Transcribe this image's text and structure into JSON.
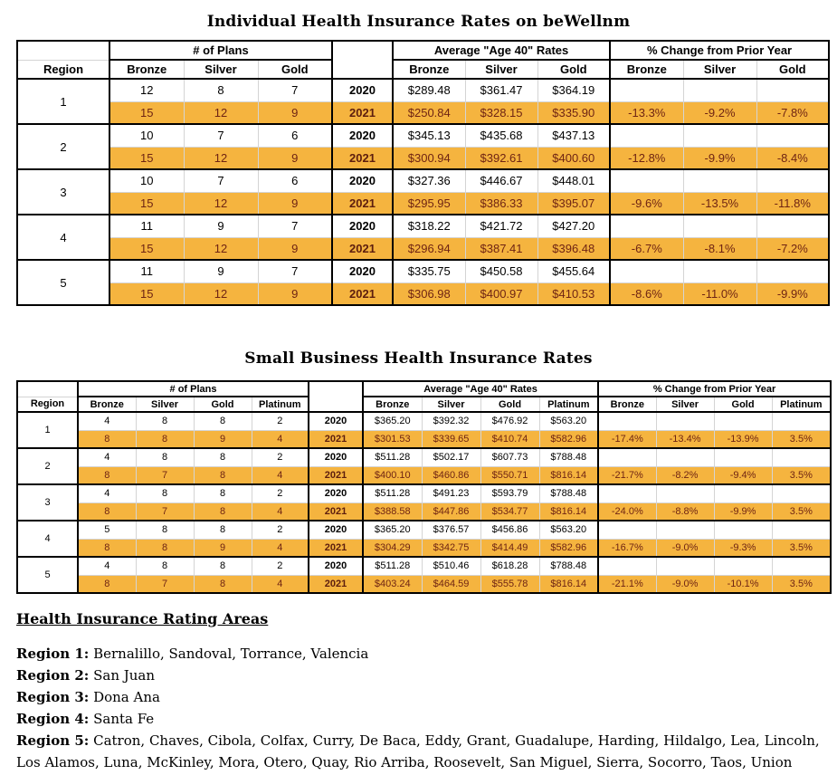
{
  "colors": {
    "highlight_row_bg": "#f5b43f",
    "highlight_row_text": "#6f2413",
    "grid_line": "#d4d4d4",
    "table_border": "#000000"
  },
  "individual_table": {
    "title": "Individual Health Insurance Rates on beWellnm",
    "group_headers": [
      "# of Plans",
      "Average \"Age 40\" Rates",
      "% Change from Prior Year"
    ],
    "region_label": "Region",
    "metals": [
      "Bronze",
      "Silver",
      "Gold"
    ],
    "regions": [
      {
        "region": "1",
        "rows": [
          {
            "year": "2020",
            "plans": [
              "12",
              "8",
              "7"
            ],
            "rates": [
              "$289.48",
              "$361.47",
              "$364.19"
            ],
            "changes": [
              "",
              "",
              ""
            ],
            "highlight": false
          },
          {
            "year": "2021",
            "plans": [
              "15",
              "12",
              "9"
            ],
            "rates": [
              "$250.84",
              "$328.15",
              "$335.90"
            ],
            "changes": [
              "-13.3%",
              "-9.2%",
              "-7.8%"
            ],
            "highlight": true
          }
        ]
      },
      {
        "region": "2",
        "rows": [
          {
            "year": "2020",
            "plans": [
              "10",
              "7",
              "6"
            ],
            "rates": [
              "$345.13",
              "$435.68",
              "$437.13"
            ],
            "changes": [
              "",
              "",
              ""
            ],
            "highlight": false
          },
          {
            "year": "2021",
            "plans": [
              "15",
              "12",
              "9"
            ],
            "rates": [
              "$300.94",
              "$392.61",
              "$400.60"
            ],
            "changes": [
              "-12.8%",
              "-9.9%",
              "-8.4%"
            ],
            "highlight": true
          }
        ]
      },
      {
        "region": "3",
        "rows": [
          {
            "year": "2020",
            "plans": [
              "10",
              "7",
              "6"
            ],
            "rates": [
              "$327.36",
              "$446.67",
              "$448.01"
            ],
            "changes": [
              "",
              "",
              ""
            ],
            "highlight": false
          },
          {
            "year": "2021",
            "plans": [
              "15",
              "12",
              "9"
            ],
            "rates": [
              "$295.95",
              "$386.33",
              "$395.07"
            ],
            "changes": [
              "-9.6%",
              "-13.5%",
              "-11.8%"
            ],
            "highlight": true
          }
        ]
      },
      {
        "region": "4",
        "rows": [
          {
            "year": "2020",
            "plans": [
              "11",
              "9",
              "7"
            ],
            "rates": [
              "$318.22",
              "$421.72",
              "$427.20"
            ],
            "changes": [
              "",
              "",
              ""
            ],
            "highlight": false
          },
          {
            "year": "2021",
            "plans": [
              "15",
              "12",
              "9"
            ],
            "rates": [
              "$296.94",
              "$387.41",
              "$396.48"
            ],
            "changes": [
              "-6.7%",
              "-8.1%",
              "-7.2%"
            ],
            "highlight": true
          }
        ]
      },
      {
        "region": "5",
        "rows": [
          {
            "year": "2020",
            "plans": [
              "11",
              "9",
              "7"
            ],
            "rates": [
              "$335.75",
              "$450.58",
              "$455.64"
            ],
            "changes": [
              "",
              "",
              ""
            ],
            "highlight": false
          },
          {
            "year": "2021",
            "plans": [
              "15",
              "12",
              "9"
            ],
            "rates": [
              "$306.98",
              "$400.97",
              "$410.53"
            ],
            "changes": [
              "-8.6%",
              "-11.0%",
              "-9.9%"
            ],
            "highlight": true
          }
        ]
      }
    ]
  },
  "small_business_table": {
    "title": "Small Business Health Insurance Rates",
    "group_headers": [
      "# of Plans",
      "Average \"Age 40\" Rates",
      "% Change from Prior Year"
    ],
    "region_label": "Region",
    "metals": [
      "Bronze",
      "Silver",
      "Gold",
      "Platinum"
    ],
    "regions": [
      {
        "region": "1",
        "rows": [
          {
            "year": "2020",
            "plans": [
              "4",
              "8",
              "8",
              "2"
            ],
            "rates": [
              "$365.20",
              "$392.32",
              "$476.92",
              "$563.20"
            ],
            "changes": [
              "",
              "",
              "",
              ""
            ],
            "highlight": false
          },
          {
            "year": "2021",
            "plans": [
              "8",
              "8",
              "9",
              "4"
            ],
            "rates": [
              "$301.53",
              "$339.65",
              "$410.74",
              "$582.96"
            ],
            "changes": [
              "-17.4%",
              "-13.4%",
              "-13.9%",
              "3.5%"
            ],
            "highlight": true
          }
        ]
      },
      {
        "region": "2",
        "rows": [
          {
            "year": "2020",
            "plans": [
              "4",
              "8",
              "8",
              "2"
            ],
            "rates": [
              "$511.28",
              "$502.17",
              "$607.73",
              "$788.48"
            ],
            "changes": [
              "",
              "",
              "",
              ""
            ],
            "highlight": false
          },
          {
            "year": "2021",
            "plans": [
              "8",
              "7",
              "8",
              "4"
            ],
            "rates": [
              "$400.10",
              "$460.86",
              "$550.71",
              "$816.14"
            ],
            "changes": [
              "-21.7%",
              "-8.2%",
              "-9.4%",
              "3.5%"
            ],
            "highlight": true
          }
        ]
      },
      {
        "region": "3",
        "rows": [
          {
            "year": "2020",
            "plans": [
              "4",
              "8",
              "8",
              "2"
            ],
            "rates": [
              "$511.28",
              "$491.23",
              "$593.79",
              "$788.48"
            ],
            "changes": [
              "",
              "",
              "",
              ""
            ],
            "highlight": false
          },
          {
            "year": "2021",
            "plans": [
              "8",
              "7",
              "8",
              "4"
            ],
            "rates": [
              "$388.58",
              "$447.86",
              "$534.77",
              "$816.14"
            ],
            "changes": [
              "-24.0%",
              "-8.8%",
              "-9.9%",
              "3.5%"
            ],
            "highlight": true
          }
        ]
      },
      {
        "region": "4",
        "rows": [
          {
            "year": "2020",
            "plans": [
              "5",
              "8",
              "8",
              "2"
            ],
            "rates": [
              "$365.20",
              "$376.57",
              "$456.86",
              "$563.20"
            ],
            "changes": [
              "",
              "",
              "",
              ""
            ],
            "highlight": false
          },
          {
            "year": "2021",
            "plans": [
              "8",
              "8",
              "9",
              "4"
            ],
            "rates": [
              "$304.29",
              "$342.75",
              "$414.49",
              "$582.96"
            ],
            "changes": [
              "-16.7%",
              "-9.0%",
              "-9.3%",
              "3.5%"
            ],
            "highlight": true
          }
        ]
      },
      {
        "region": "5",
        "rows": [
          {
            "year": "2020",
            "plans": [
              "4",
              "8",
              "8",
              "2"
            ],
            "rates": [
              "$511.28",
              "$510.46",
              "$618.28",
              "$788.48"
            ],
            "changes": [
              "",
              "",
              "",
              ""
            ],
            "highlight": false
          },
          {
            "year": "2021",
            "plans": [
              "8",
              "7",
              "8",
              "4"
            ],
            "rates": [
              "$403.24",
              "$464.59",
              "$555.78",
              "$816.14"
            ],
            "changes": [
              "-21.1%",
              "-9.0%",
              "-10.1%",
              "3.5%"
            ],
            "highlight": true
          }
        ]
      }
    ]
  },
  "rating_areas": {
    "heading": "Health Insurance Rating Areas",
    "entries": [
      {
        "label": "Region 1:",
        "text": "Bernalillo, Sandoval, Torrance, Valencia"
      },
      {
        "label": "Region 2:",
        "text": "San Juan"
      },
      {
        "label": "Region 3:",
        "text": "Dona Ana"
      },
      {
        "label": "Region 4:",
        "text": "Santa Fe"
      },
      {
        "label": "Region 5:",
        "text": "Catron, Chaves, Cibola, Colfax, Curry, De Baca, Eddy, Grant, Guadalupe, Harding, Hildalgo, Lea, Lincoln, Los Alamos, Luna, McKinley, Mora, Otero, Quay, Rio Arriba, Roosevelt, San Miguel, Sierra, Socorro, Taos, Union"
      }
    ]
  }
}
